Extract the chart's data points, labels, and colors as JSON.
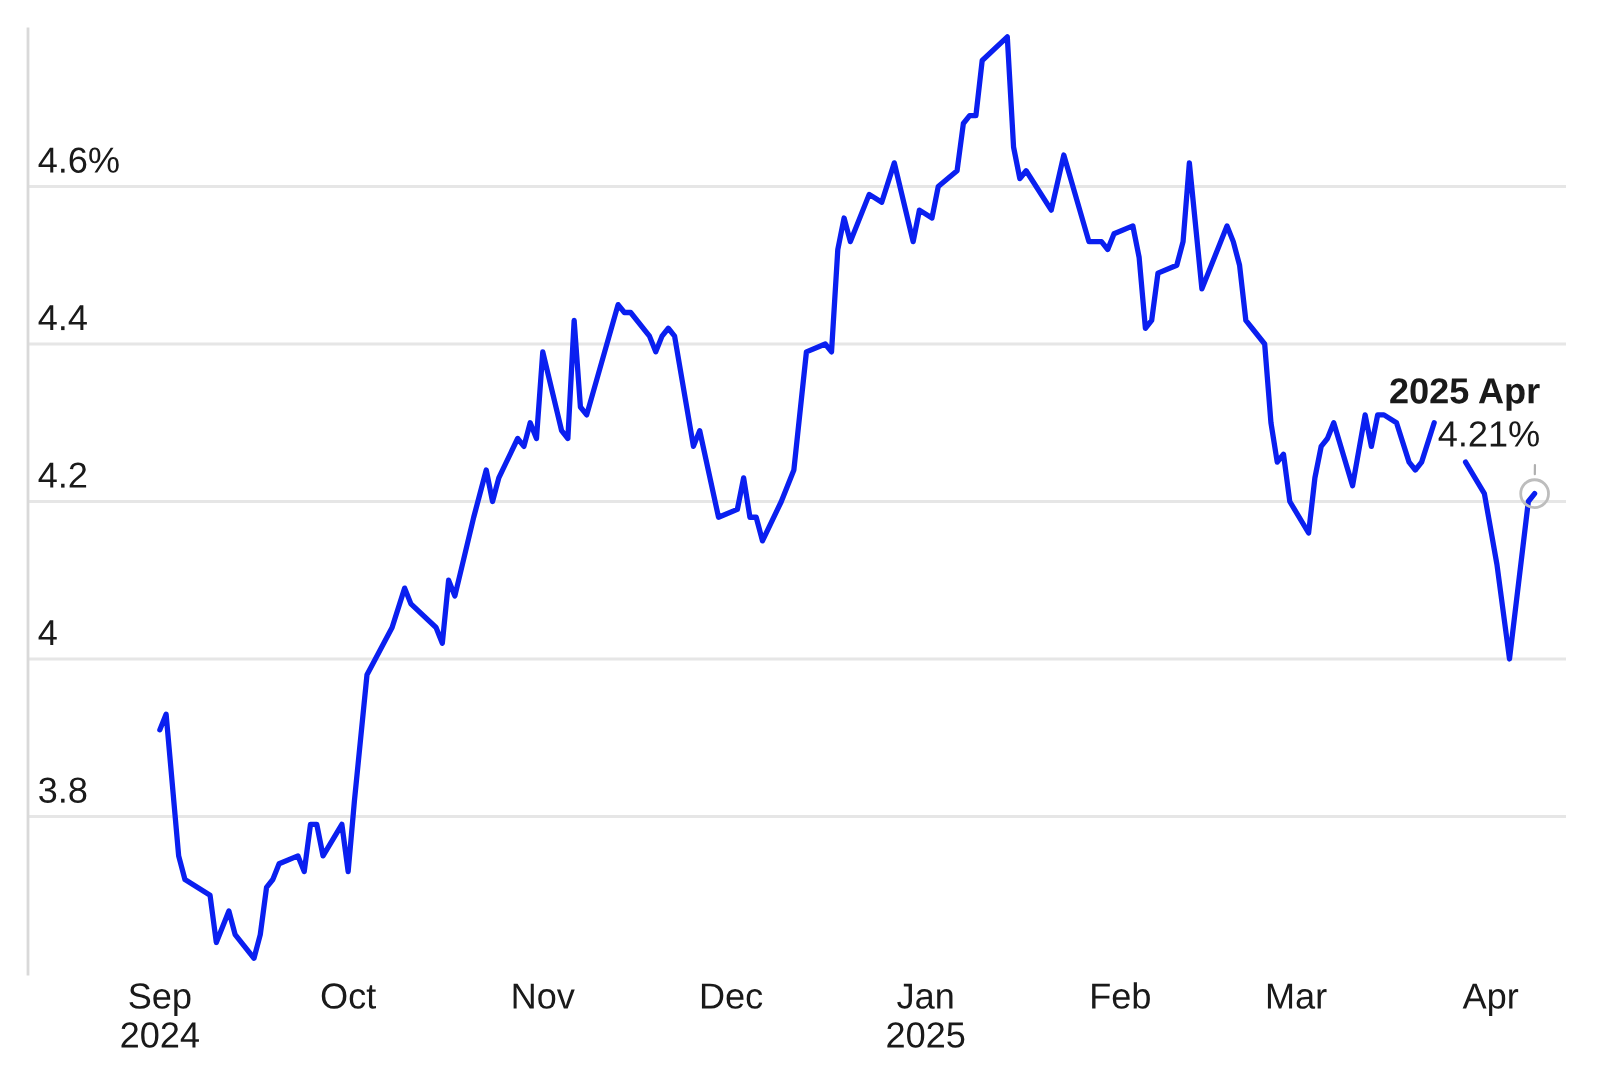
{
  "chart_data": {
    "type": "line",
    "color": "#0a1ff0",
    "line_style": "solid",
    "grid": "y",
    "x": [
      "2024-09-01",
      "2024-09-02",
      "2024-09-04",
      "2024-09-05",
      "2024-09-09",
      "2024-09-10",
      "2024-09-12",
      "2024-09-13",
      "2024-09-16",
      "2024-09-17",
      "2024-09-18",
      "2024-09-19",
      "2024-09-20",
      "2024-09-23",
      "2024-09-24",
      "2024-09-25",
      "2024-09-26",
      "2024-09-27",
      "2024-09-30",
      "2024-10-01",
      "2024-10-02",
      "2024-10-04",
      "2024-10-08",
      "2024-10-10",
      "2024-10-11",
      "2024-10-15",
      "2024-10-16",
      "2024-10-17",
      "2024-10-18",
      "2024-10-21",
      "2024-10-23",
      "2024-10-24",
      "2024-10-25",
      "2024-10-28",
      "2024-10-29",
      "2024-10-30",
      "2024-10-31",
      "2024-11-01",
      "2024-11-04",
      "2024-11-05",
      "2024-11-06",
      "2024-11-07",
      "2024-11-08",
      "2024-11-13",
      "2024-11-14",
      "2024-11-15",
      "2024-11-18",
      "2024-11-19",
      "2024-11-20",
      "2024-11-21",
      "2024-11-22",
      "2024-11-25",
      "2024-11-26",
      "2024-11-29",
      "2024-12-02",
      "2024-12-03",
      "2024-12-04",
      "2024-12-05",
      "2024-12-06",
      "2024-12-09",
      "2024-12-11",
      "2024-12-13",
      "2024-12-16",
      "2024-12-17",
      "2024-12-18",
      "2024-12-19",
      "2024-12-20",
      "2024-12-23",
      "2024-12-25",
      "2024-12-27",
      "2024-12-30",
      "2024-12-31",
      "2025-01-02",
      "2025-01-03",
      "2025-01-06",
      "2025-01-07",
      "2025-01-08",
      "2025-01-09",
      "2025-01-10",
      "2025-01-14",
      "2025-01-15",
      "2025-01-16",
      "2025-01-17",
      "2025-01-21",
      "2025-01-23",
      "2025-01-27",
      "2025-01-29",
      "2025-01-30",
      "2025-01-31",
      "2025-02-03",
      "2025-02-04",
      "2025-02-05",
      "2025-02-06",
      "2025-02-07",
      "2025-02-10",
      "2025-02-11",
      "2025-02-12",
      "2025-02-14",
      "2025-02-18",
      "2025-02-19",
      "2025-02-20",
      "2025-02-21",
      "2025-02-22",
      "2025-02-24",
      "2025-02-25",
      "2025-02-26",
      "2025-02-27",
      "2025-02-28",
      "2025-03-03",
      "2025-03-04",
      "2025-03-05",
      "2025-03-06",
      "2025-03-07",
      "2025-03-10",
      "2025-03-12",
      "2025-03-13",
      "2025-03-14",
      "2025-03-15",
      "2025-03-17",
      "2025-03-19",
      "2025-03-20",
      "2025-03-21",
      "2025-03-23",
      "2025-03-25",
      "2025-03-28",
      "2025-03-31",
      "2025-04-02",
      "2025-04-04",
      "2025-04-07",
      "2025-04-08"
    ],
    "values": [
      3.91,
      3.93,
      3.75,
      3.72,
      3.7,
      3.64,
      3.68,
      3.65,
      3.62,
      3.65,
      3.71,
      3.72,
      3.74,
      3.75,
      3.73,
      3.79,
      3.79,
      3.75,
      3.79,
      3.73,
      3.82,
      3.98,
      4.04,
      4.09,
      4.07,
      4.04,
      4.02,
      4.1,
      4.08,
      4.18,
      4.24,
      4.2,
      4.23,
      4.28,
      4.27,
      4.3,
      4.28,
      4.39,
      4.29,
      4.28,
      4.43,
      4.32,
      4.31,
      4.45,
      4.44,
      4.44,
      4.41,
      4.39,
      4.41,
      4.42,
      4.41,
      4.27,
      4.29,
      4.18,
      4.19,
      4.23,
      4.18,
      4.18,
      4.15,
      4.2,
      4.24,
      4.39,
      4.4,
      4.39,
      4.52,
      4.56,
      4.53,
      4.59,
      4.58,
      4.63,
      4.53,
      4.57,
      4.56,
      4.6,
      4.62,
      4.68,
      4.69,
      4.69,
      4.76,
      4.79,
      4.65,
      4.61,
      4.62,
      4.57,
      4.64,
      4.53,
      4.53,
      4.52,
      4.54,
      4.55,
      4.51,
      4.42,
      4.43,
      4.49,
      4.5,
      4.53,
      4.63,
      4.47,
      4.55,
      4.53,
      4.5,
      4.43,
      4.42,
      4.4,
      4.3,
      4.25,
      4.26,
      4.2,
      4.16,
      4.23,
      4.27,
      4.28,
      4.3,
      4.22,
      4.31,
      4.27,
      4.31,
      4.31,
      4.3,
      4.25,
      4.24,
      4.25,
      4.3,
      null,
      4.25,
      4.21,
      4.12,
      4.0,
      4.2,
      4.21
    ],
    "xlim": [
      "2024-08-11",
      "2025-04-13"
    ],
    "xticks": [
      {
        "value": "2024-09-01",
        "label": "Sep\n2024"
      },
      {
        "value": "2024-10-01",
        "label": "Oct"
      },
      {
        "value": "2024-11-01",
        "label": "Nov"
      },
      {
        "value": "2024-12-01",
        "label": "Dec"
      },
      {
        "value": "2025-01-01",
        "label": "Jan\n2025"
      },
      {
        "value": "2025-02-01",
        "label": "Feb"
      },
      {
        "value": "2025-03-01",
        "label": "Mar"
      },
      {
        "value": "2025-04-01",
        "label": "Apr"
      }
    ],
    "ylim": [
      3.6,
      4.8
    ],
    "yticks": [
      3.8,
      4,
      4.2,
      4.4,
      {
        "value": 4.6,
        "label": "4.6%"
      }
    ],
    "annotations": [
      {
        "text": "2025 Apr\n4.21%",
        "x": "2025-04-08",
        "y": 4.21
      }
    ]
  }
}
